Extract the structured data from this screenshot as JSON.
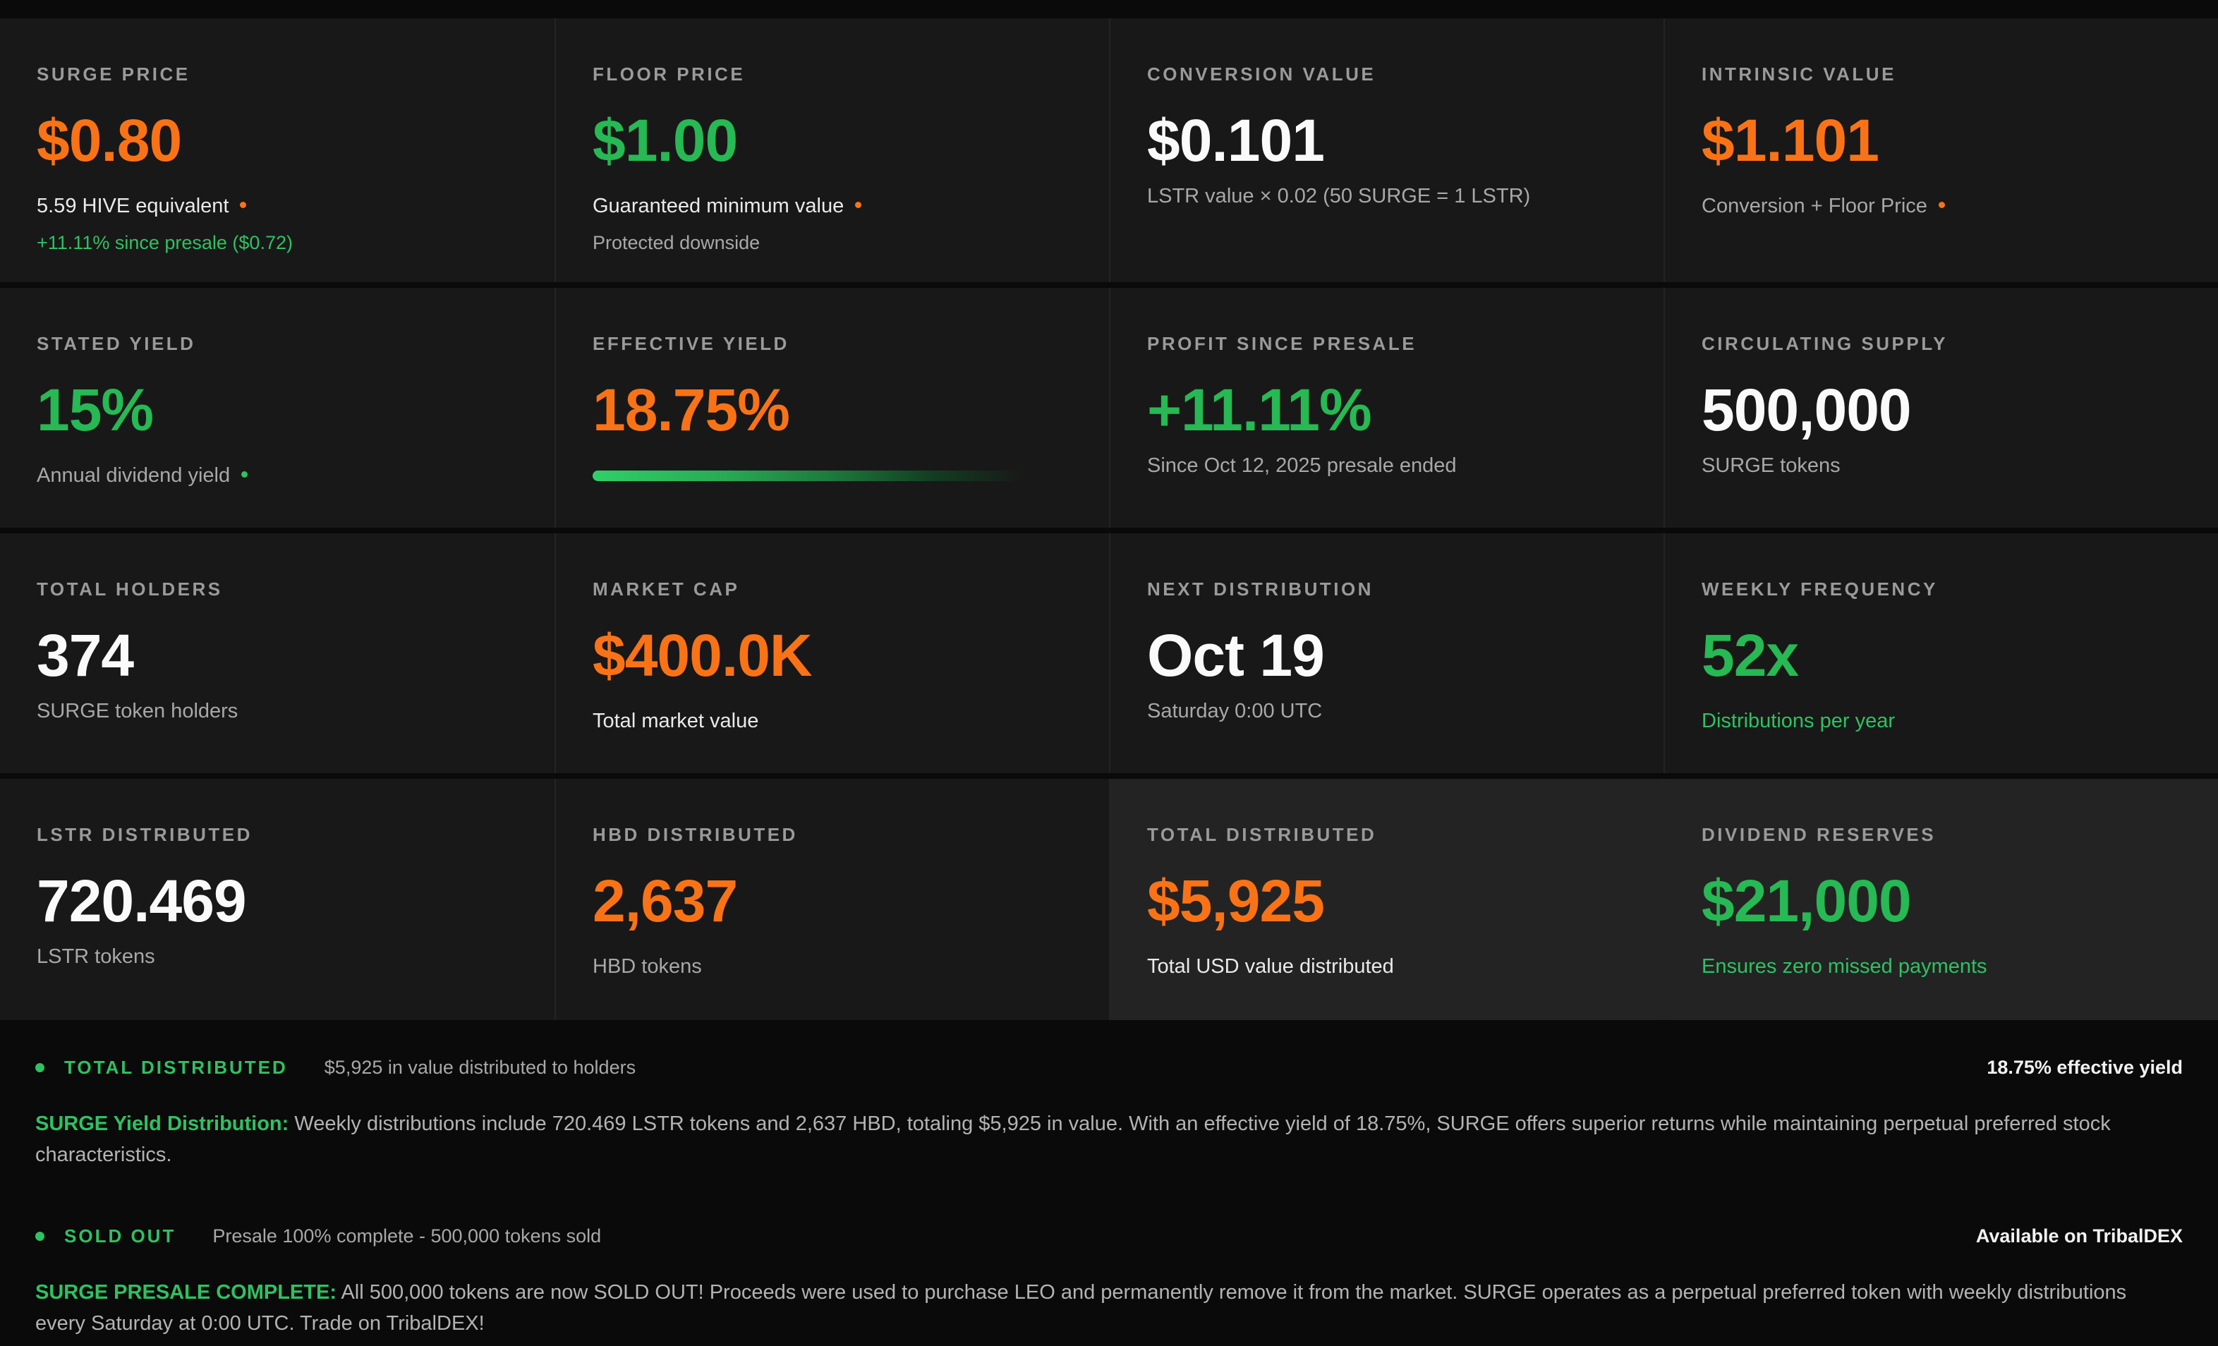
{
  "colors": {
    "page_bg": "#0a0a0a",
    "card_bg": "#181818",
    "card_bg_highlight": "#232323",
    "accent_orange": "#f97316",
    "accent_green": "#26b954",
    "label_gray": "#9a9a9a"
  },
  "cards": [
    {
      "label": "SURGE PRICE",
      "value": "$0.80",
      "value_color": "orange",
      "subs": [
        {
          "text": "5.59 HIVE equivalent",
          "color": "white",
          "dot": "orange"
        },
        {
          "text": "+11.11% since presale ($0.72)",
          "color": "green",
          "dot": "none"
        }
      ]
    },
    {
      "label": "FLOOR PRICE",
      "value": "$1.00",
      "value_color": "green",
      "subs": [
        {
          "text": "Guaranteed minimum value",
          "color": "white",
          "dot": "orange"
        },
        {
          "text": "Protected downside",
          "color": "gray",
          "dot": "none"
        }
      ]
    },
    {
      "label": "CONVERSION VALUE",
      "value": "$0.101",
      "value_color": "white",
      "subs": [
        {
          "text": "LSTR value × 0.02 (50 SURGE = 1 LSTR)",
          "color": "gray",
          "dot": "none"
        }
      ]
    },
    {
      "label": "INTRINSIC VALUE",
      "value": "$1.101",
      "value_color": "orange",
      "subs": [
        {
          "text": "Conversion + Floor Price",
          "color": "gray",
          "dot": "orange"
        }
      ]
    },
    {
      "label": "STATED YIELD",
      "value": "15%",
      "value_color": "green",
      "subs": [
        {
          "text": "Annual dividend yield",
          "color": "gray",
          "dot": "green"
        }
      ]
    },
    {
      "label": "EFFECTIVE YIELD",
      "value": "18.75%",
      "value_color": "orange",
      "progress_percent": 88,
      "subs": []
    },
    {
      "label": "PROFIT SINCE PRESALE",
      "value": "+11.11%",
      "value_color": "green",
      "subs": [
        {
          "text": "Since Oct 12, 2025 presale ended",
          "color": "gray",
          "dot": "none"
        }
      ]
    },
    {
      "label": "CIRCULATING SUPPLY",
      "value": "500,000",
      "value_color": "white",
      "subs": [
        {
          "text": "SURGE tokens",
          "color": "gray",
          "dot": "none"
        }
      ]
    },
    {
      "label": "TOTAL HOLDERS",
      "value": "374",
      "value_color": "white",
      "subs": [
        {
          "text": "SURGE token holders",
          "color": "gray",
          "dot": "none"
        }
      ]
    },
    {
      "label": "MARKET CAP",
      "value": "$400.0K",
      "value_color": "orange",
      "subs": [
        {
          "text": "Total market value",
          "color": "white",
          "dot": "none"
        }
      ]
    },
    {
      "label": "NEXT DISTRIBUTION",
      "value": "Oct 19",
      "value_color": "white",
      "subs": [
        {
          "text": "Saturday 0:00 UTC",
          "color": "gray",
          "dot": "none"
        }
      ]
    },
    {
      "label": "WEEKLY FREQUENCY",
      "value": "52x",
      "value_color": "green",
      "subs": [
        {
          "text": "Distributions per year",
          "color": "green",
          "dot": "none"
        }
      ]
    },
    {
      "label": "LSTR DISTRIBUTED",
      "value": "720.469",
      "value_color": "white",
      "subs": [
        {
          "text": "LSTR tokens",
          "color": "gray",
          "dot": "none"
        }
      ]
    },
    {
      "label": "HBD DISTRIBUTED",
      "value": "2,637",
      "value_color": "orange",
      "subs": [
        {
          "text": "HBD tokens",
          "color": "gray",
          "dot": "none"
        }
      ]
    },
    {
      "label": "TOTAL DISTRIBUTED",
      "value": "$5,925",
      "value_color": "orange",
      "highlighted": true,
      "subs": [
        {
          "text": "Total USD value distributed",
          "color": "white",
          "dot": "none"
        }
      ]
    },
    {
      "label": "DIVIDEND RESERVES",
      "value": "$21,000",
      "value_color": "green",
      "highlighted": true,
      "subs": [
        {
          "text": "Ensures zero missed payments",
          "color": "green",
          "dot": "none"
        }
      ]
    }
  ],
  "sections": [
    {
      "badge_label": "TOTAL DISTRIBUTED",
      "badge_desc": "$5,925 in value distributed to holders",
      "right_text": "18.75% effective yield",
      "para_lead": "SURGE Yield Distribution:",
      "para_body": " Weekly distributions include 720.469 LSTR tokens and 2,637 HBD, totaling $5,925 in value. With an effective yield of 18.75%, SURGE offers superior returns while maintaining perpetual preferred stock characteristics."
    },
    {
      "badge_label": "SOLD OUT",
      "badge_desc": "Presale 100% complete - 500,000 tokens sold",
      "right_text": "Available on TribalDEX",
      "para_lead": "SURGE PRESALE COMPLETE:",
      "para_body": " All 500,000 tokens are now SOLD OUT! Proceeds were used to purchase LEO and permanently remove it from the market. SURGE operates as a perpetual preferred token with weekly distributions every Saturday at 0:00 UTC. Trade on TribalDEX!"
    }
  ]
}
